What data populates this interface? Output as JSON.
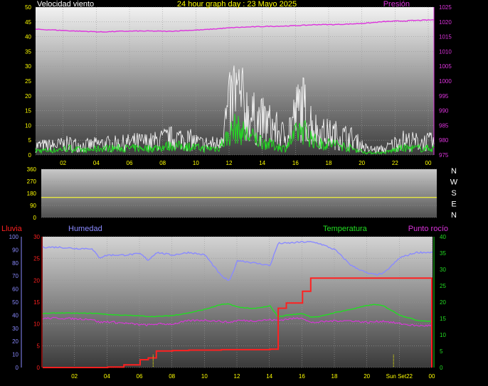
{
  "header": {
    "left": "Velocidad viento",
    "center": "24 hour graph day : 23 Mayo 2025",
    "right": "Presión"
  },
  "colors": {
    "wind_avg": "#22dd22",
    "wind_gust": "#ffffff",
    "pressure": "#dd33dd",
    "direction": "#e8e840",
    "rain": "#ff2020",
    "humidity": "#8a8aff",
    "temperature": "#22dd22",
    "dewpoint": "#dd33dd",
    "marker": "#ffff00",
    "axis_text": "#ffff00"
  },
  "compass": [
    "N",
    "W",
    "S",
    "E",
    "N"
  ],
  "time_ticks": [
    "02",
    "04",
    "06",
    "08",
    "10",
    "12",
    "14",
    "16",
    "18",
    "20",
    "22",
    "00"
  ],
  "time_ticks_bottom": [
    "02",
    "04",
    "06",
    "08",
    "10",
    "12",
    "14",
    "16",
    "18",
    "20",
    "Sun Set22",
    "00"
  ],
  "chart_data": [
    {
      "type": "line",
      "title": "24 hour graph day : 23 Mayo 2025",
      "ylabel": "Velocidad viento",
      "y2label": "Presión",
      "ylim": [
        0,
        50
      ],
      "y2lim": [
        975,
        1025
      ],
      "yticks": [
        0,
        5,
        10,
        15,
        20,
        25,
        30,
        35,
        40,
        45,
        50
      ],
      "y2ticks": [
        975,
        980,
        985,
        990,
        995,
        1000,
        1005,
        1010,
        1015,
        1020,
        1025
      ],
      "x": [
        0,
        1,
        2,
        3,
        4,
        5,
        6,
        7,
        8,
        9,
        10,
        11,
        12,
        13,
        14,
        15,
        16,
        17,
        18,
        19,
        20,
        21,
        22,
        23,
        24
      ],
      "series": [
        {
          "name": "Velocidad viento",
          "axis": "left",
          "values": [
            2,
            2,
            3,
            2,
            3,
            3,
            3,
            3,
            4,
            4,
            3,
            3,
            12,
            8,
            5,
            3,
            12,
            5,
            5,
            3,
            1,
            1,
            3,
            3,
            3
          ]
        },
        {
          "name": "Racha",
          "axis": "left",
          "values": [
            5,
            5,
            6,
            5,
            6,
            6,
            7,
            7,
            9,
            9,
            6,
            6,
            34,
            20,
            17,
            10,
            27,
            12,
            11,
            9,
            3,
            3,
            8,
            7,
            7
          ]
        },
        {
          "name": "Presión",
          "axis": "right",
          "values": [
            1017.5,
            1017.3,
            1017,
            1016.8,
            1016.6,
            1016.8,
            1016.9,
            1016.9,
            1016.8,
            1017.1,
            1017.3,
            1017.7,
            1018.1,
            1018.3,
            1018.5,
            1018.6,
            1018.8,
            1019.1,
            1019.1,
            1019.3,
            1019.6,
            1020.1,
            1020.3,
            1020.5,
            1020.7
          ]
        }
      ]
    },
    {
      "type": "line",
      "ylim": [
        0,
        360
      ],
      "yticks": [
        0,
        90,
        180,
        270,
        360
      ],
      "x": [
        0,
        24
      ],
      "series": [
        {
          "name": "Dirección",
          "values": [
            150,
            150
          ]
        }
      ]
    },
    {
      "type": "line",
      "ylabel": "Lluvia",
      "ylabel2": "Humedad",
      "y2label": "Temperatura",
      "y2label2": "Punto rocío",
      "ylim": [
        0,
        30
      ],
      "yticks": [
        0,
        5,
        10,
        15,
        20,
        25,
        30
      ],
      "humidity_ticks": [
        0,
        10,
        20,
        30,
        40,
        50,
        60,
        70,
        80,
        90,
        100
      ],
      "y2lim": [
        0,
        40
      ],
      "y2ticks": [
        0,
        5,
        10,
        15,
        20,
        25,
        30,
        35,
        40
      ],
      "x": [
        0,
        1,
        2,
        3,
        3.5,
        4,
        5,
        6,
        6.5,
        7,
        8,
        9,
        10,
        11,
        11.5,
        12,
        13,
        14,
        14.5,
        15,
        16,
        16.5,
        17,
        18,
        19,
        20,
        20.5,
        21,
        22,
        23,
        24
      ],
      "series": [
        {
          "name": "Humedad",
          "axis": "humidity",
          "values": [
            92,
            92,
            91,
            91,
            84,
            86,
            86,
            87,
            82,
            88,
            86,
            88,
            86,
            70,
            66,
            82,
            80,
            78,
            95,
            95,
            96,
            96,
            95,
            90,
            78,
            72,
            71,
            72,
            84,
            88,
            88
          ]
        },
        {
          "name": "Temperatura",
          "axis": "right",
          "values": [
            16.5,
            16.7,
            16.6,
            16.6,
            16.5,
            16.2,
            16.0,
            15.8,
            15.6,
            15.6,
            15.9,
            16.7,
            17.8,
            19.3,
            19.4,
            18.5,
            18.0,
            18.8,
            15.5,
            16.0,
            16.5,
            15.5,
            15.5,
            16.8,
            17.8,
            19.0,
            19.3,
            18.8,
            16.0,
            14.5,
            14.0
          ]
        },
        {
          "name": "Punto rocío",
          "axis": "right",
          "values": [
            15.0,
            15.1,
            14.9,
            14.8,
            13.8,
            14.0,
            13.6,
            13.1,
            13.0,
            13.3,
            13.3,
            14.3,
            14.5,
            14.1,
            13.8,
            14.4,
            14.3,
            14.6,
            14.4,
            14.8,
            15.2,
            13.7,
            13.9,
            14.3,
            14.3,
            13.8,
            14.0,
            14.2,
            13.4,
            12.8,
            12.8
          ]
        },
        {
          "name": "Lluvia",
          "axis": "left",
          "values": [
            0,
            0,
            0,
            0,
            0,
            0.1,
            0.6,
            1.8,
            2.2,
            3.8,
            3.9,
            4.0,
            4.0,
            4.1,
            4.1,
            4.1,
            4.1,
            4.2,
            13.6,
            14.8,
            17.5,
            20.5,
            20.5,
            20.5,
            20.5,
            20.5,
            20.5,
            20.5,
            20.5,
            20.5,
            20.5
          ]
        }
      ]
    }
  ],
  "bottom_labels": {
    "rain": "Lluvia",
    "humidity": "Humedad",
    "temperature": "Temperatura",
    "dewpoint": "Punto rocío"
  }
}
